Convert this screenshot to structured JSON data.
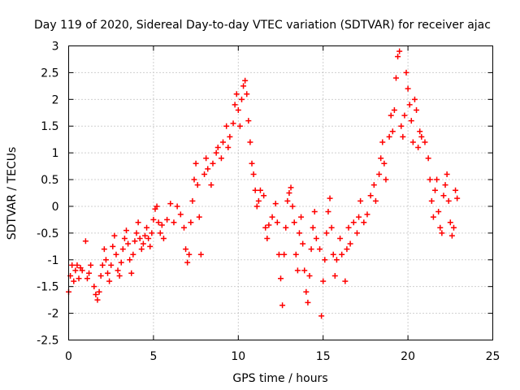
{
  "chart_data": {
    "type": "scatter",
    "title": "Day 119 of 2020, Sidereal Day-to-day VTEC variation (SDTVAR) for receiver ajac",
    "xlabel": "GPS time / hours",
    "ylabel": "SDTVAR / TECUs",
    "xlim": [
      0,
      25
    ],
    "ylim": [
      -2.5,
      3
    ],
    "xticks": [
      "0",
      "5",
      "10",
      "15",
      "20",
      "25"
    ],
    "yticks": [
      "-2.5",
      "-2",
      "-1.5",
      "-1",
      "-0.5",
      "0",
      "0.5",
      "1",
      "1.5",
      "2",
      "2.5",
      "3"
    ],
    "grid": true,
    "marker": "+",
    "series": [
      {
        "name": "SDTVAR",
        "color": "#ff0000",
        "points": [
          [
            0.0,
            -1.6
          ],
          [
            0.1,
            -1.3
          ],
          [
            0.2,
            -1.1
          ],
          [
            0.3,
            -1.4
          ],
          [
            0.4,
            -1.2
          ],
          [
            0.5,
            -1.1
          ],
          [
            0.6,
            -1.35
          ],
          [
            0.7,
            -1.15
          ],
          [
            0.8,
            -1.2
          ],
          [
            1.0,
            -0.65
          ],
          [
            1.1,
            -1.35
          ],
          [
            1.2,
            -1.25
          ],
          [
            1.3,
            -1.1
          ],
          [
            1.5,
            -1.5
          ],
          [
            1.6,
            -1.65
          ],
          [
            1.7,
            -1.75
          ],
          [
            1.8,
            -1.6
          ],
          [
            1.9,
            -1.3
          ],
          [
            2.0,
            -1.1
          ],
          [
            2.1,
            -0.8
          ],
          [
            2.2,
            -1.0
          ],
          [
            2.3,
            -1.25
          ],
          [
            2.4,
            -1.4
          ],
          [
            2.5,
            -1.1
          ],
          [
            2.6,
            -0.75
          ],
          [
            2.7,
            -0.55
          ],
          [
            2.8,
            -0.9
          ],
          [
            2.9,
            -1.2
          ],
          [
            3.0,
            -1.3
          ],
          [
            3.1,
            -1.05
          ],
          [
            3.2,
            -0.8
          ],
          [
            3.3,
            -0.6
          ],
          [
            3.4,
            -0.45
          ],
          [
            3.5,
            -0.7
          ],
          [
            3.6,
            -1.0
          ],
          [
            3.7,
            -1.25
          ],
          [
            3.8,
            -0.9
          ],
          [
            3.9,
            -0.65
          ],
          [
            4.0,
            -0.5
          ],
          [
            4.1,
            -0.3
          ],
          [
            4.2,
            -0.6
          ],
          [
            4.3,
            -0.8
          ],
          [
            4.4,
            -0.7
          ],
          [
            4.5,
            -0.55
          ],
          [
            4.6,
            -0.4
          ],
          [
            4.7,
            -0.6
          ],
          [
            4.8,
            -0.75
          ],
          [
            4.9,
            -0.5
          ],
          [
            5.0,
            -0.25
          ],
          [
            5.1,
            -0.05
          ],
          [
            5.2,
            0.0
          ],
          [
            5.3,
            -0.3
          ],
          [
            5.4,
            -0.5
          ],
          [
            5.5,
            -0.35
          ],
          [
            5.6,
            -0.6
          ],
          [
            5.8,
            -0.25
          ],
          [
            6.0,
            0.05
          ],
          [
            6.2,
            -0.3
          ],
          [
            6.4,
            0.0
          ],
          [
            6.6,
            -0.15
          ],
          [
            6.8,
            -0.4
          ],
          [
            6.9,
            -0.8
          ],
          [
            7.0,
            -1.05
          ],
          [
            7.1,
            -0.9
          ],
          [
            7.2,
            -0.3
          ],
          [
            7.3,
            0.1
          ],
          [
            7.4,
            0.5
          ],
          [
            7.5,
            0.8
          ],
          [
            7.6,
            0.4
          ],
          [
            7.7,
            -0.2
          ],
          [
            7.8,
            -0.9
          ],
          [
            8.0,
            0.6
          ],
          [
            8.1,
            0.9
          ],
          [
            8.2,
            0.7
          ],
          [
            8.4,
            0.4
          ],
          [
            8.5,
            0.8
          ],
          [
            8.7,
            1.0
          ],
          [
            8.8,
            1.1
          ],
          [
            9.0,
            0.9
          ],
          [
            9.1,
            1.2
          ],
          [
            9.3,
            1.5
          ],
          [
            9.4,
            1.1
          ],
          [
            9.5,
            1.3
          ],
          [
            9.7,
            1.55
          ],
          [
            9.8,
            1.9
          ],
          [
            9.9,
            2.1
          ],
          [
            10.0,
            1.8
          ],
          [
            10.1,
            1.5
          ],
          [
            10.2,
            2.0
          ],
          [
            10.3,
            2.25
          ],
          [
            10.4,
            2.35
          ],
          [
            10.5,
            2.1
          ],
          [
            10.6,
            1.6
          ],
          [
            10.7,
            1.2
          ],
          [
            10.8,
            0.8
          ],
          [
            10.9,
            0.6
          ],
          [
            11.0,
            0.3
          ],
          [
            11.1,
            0.0
          ],
          [
            11.2,
            0.1
          ],
          [
            11.3,
            0.3
          ],
          [
            11.5,
            0.2
          ],
          [
            11.6,
            -0.4
          ],
          [
            11.7,
            -0.6
          ],
          [
            11.8,
            -0.35
          ],
          [
            12.0,
            -0.2
          ],
          [
            12.2,
            0.05
          ],
          [
            12.3,
            -0.3
          ],
          [
            12.4,
            -0.9
          ],
          [
            12.5,
            -1.35
          ],
          [
            12.6,
            -1.85
          ],
          [
            12.7,
            -0.9
          ],
          [
            12.8,
            -0.4
          ],
          [
            12.9,
            0.1
          ],
          [
            13.0,
            0.25
          ],
          [
            13.1,
            0.35
          ],
          [
            13.2,
            0.0
          ],
          [
            13.3,
            -0.3
          ],
          [
            13.4,
            -0.9
          ],
          [
            13.5,
            -1.2
          ],
          [
            13.6,
            -0.5
          ],
          [
            13.7,
            -0.2
          ],
          [
            13.8,
            -0.7
          ],
          [
            13.9,
            -1.2
          ],
          [
            14.0,
            -1.6
          ],
          [
            14.1,
            -1.8
          ],
          [
            14.2,
            -1.3
          ],
          [
            14.3,
            -0.8
          ],
          [
            14.4,
            -0.4
          ],
          [
            14.5,
            -0.1
          ],
          [
            14.6,
            -0.6
          ],
          [
            14.8,
            -0.8
          ],
          [
            14.9,
            -2.05
          ],
          [
            15.0,
            -1.4
          ],
          [
            15.1,
            -1.0
          ],
          [
            15.2,
            -0.5
          ],
          [
            15.3,
            -0.1
          ],
          [
            15.4,
            0.15
          ],
          [
            15.5,
            -0.4
          ],
          [
            15.6,
            -0.9
          ],
          [
            15.7,
            -1.3
          ],
          [
            15.8,
            -1.0
          ],
          [
            16.0,
            -0.6
          ],
          [
            16.1,
            -0.9
          ],
          [
            16.3,
            -1.4
          ],
          [
            16.4,
            -0.8
          ],
          [
            16.5,
            -0.4
          ],
          [
            16.6,
            -0.7
          ],
          [
            16.8,
            -0.3
          ],
          [
            17.0,
            -0.5
          ],
          [
            17.1,
            -0.2
          ],
          [
            17.2,
            0.1
          ],
          [
            17.4,
            -0.3
          ],
          [
            17.6,
            -0.15
          ],
          [
            17.8,
            0.2
          ],
          [
            18.0,
            0.4
          ],
          [
            18.1,
            0.1
          ],
          [
            18.3,
            0.6
          ],
          [
            18.4,
            0.9
          ],
          [
            18.5,
            1.2
          ],
          [
            18.6,
            0.8
          ],
          [
            18.7,
            0.5
          ],
          [
            18.9,
            1.3
          ],
          [
            19.0,
            1.7
          ],
          [
            19.1,
            1.4
          ],
          [
            19.2,
            1.8
          ],
          [
            19.3,
            2.4
          ],
          [
            19.4,
            2.8
          ],
          [
            19.5,
            2.9
          ],
          [
            19.6,
            1.5
          ],
          [
            19.7,
            1.3
          ],
          [
            19.8,
            1.7
          ],
          [
            19.9,
            2.5
          ],
          [
            20.0,
            2.2
          ],
          [
            20.1,
            1.9
          ],
          [
            20.2,
            1.6
          ],
          [
            20.3,
            1.2
          ],
          [
            20.4,
            2.0
          ],
          [
            20.5,
            1.8
          ],
          [
            20.6,
            1.1
          ],
          [
            20.7,
            1.4
          ],
          [
            20.8,
            1.3
          ],
          [
            21.0,
            1.2
          ],
          [
            21.2,
            0.9
          ],
          [
            21.3,
            0.5
          ],
          [
            21.4,
            0.1
          ],
          [
            21.5,
            -0.2
          ],
          [
            21.6,
            0.3
          ],
          [
            21.7,
            0.5
          ],
          [
            21.8,
            -0.1
          ],
          [
            21.9,
            -0.4
          ],
          [
            22.0,
            -0.5
          ],
          [
            22.1,
            0.2
          ],
          [
            22.2,
            0.4
          ],
          [
            22.3,
            0.6
          ],
          [
            22.4,
            0.1
          ],
          [
            22.5,
            -0.3
          ],
          [
            22.6,
            -0.55
          ],
          [
            22.7,
            -0.4
          ],
          [
            22.8,
            0.3
          ],
          [
            22.9,
            0.15
          ]
        ]
      }
    ]
  }
}
